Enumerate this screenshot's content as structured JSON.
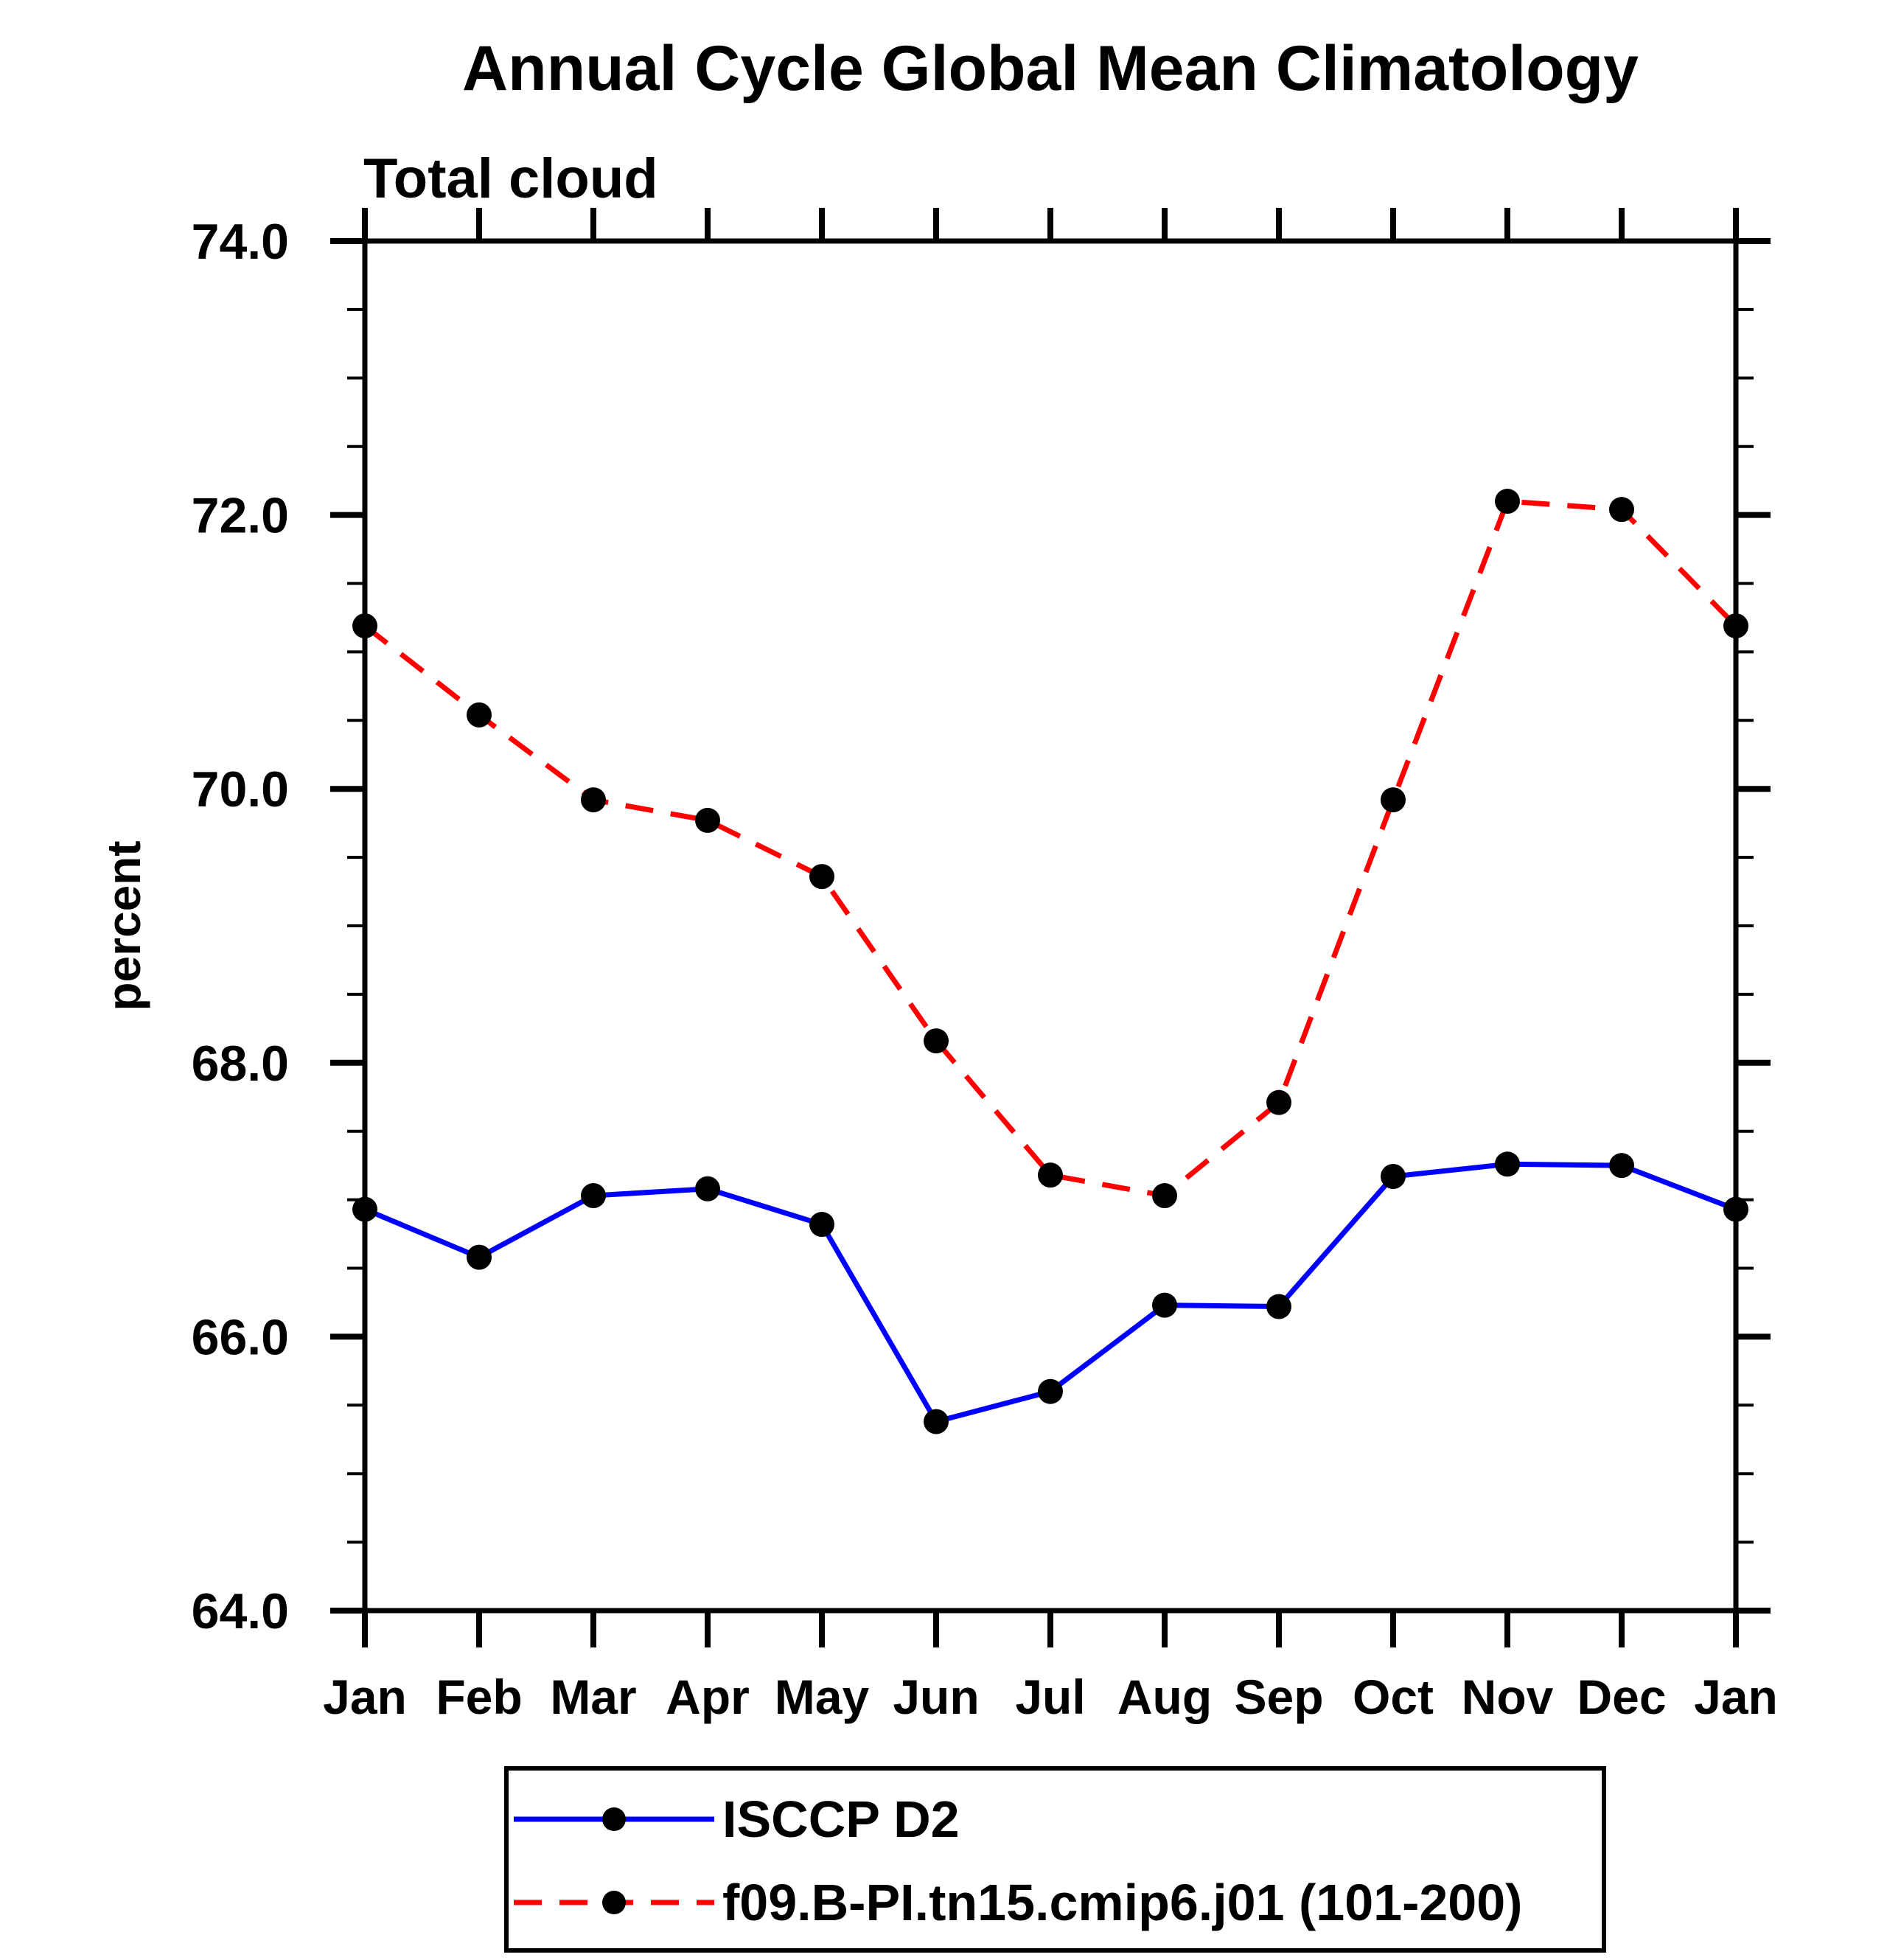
{
  "page": {
    "background_color": "#ffffff",
    "axis_color": "#000000"
  },
  "chart_data": {
    "type": "line",
    "title": "Annual Cycle Global Mean Climatology",
    "subtitle": "Total cloud",
    "ylabel": "percent",
    "ylim": [
      64.0,
      74.0
    ],
    "y_major_step": 2.0,
    "y_minor_step": 0.5,
    "y_major_tick_labels": [
      "74.0",
      "72.0",
      "70.0",
      "68.0",
      "66.0",
      "64.0"
    ],
    "categories": [
      "Jan",
      "Feb",
      "Mar",
      "Apr",
      "May",
      "Jun",
      "Jul",
      "Aug",
      "Sep",
      "Oct",
      "Nov",
      "Dec",
      "Jan"
    ],
    "grid": false,
    "legend_position": "bottom",
    "marker": "black-dot",
    "marker_color": "#000000",
    "series": [
      {
        "name": "ISCCP D2",
        "color": "#0000ff",
        "style": "solid",
        "values": [
          66.93,
          66.58,
          67.03,
          67.08,
          66.82,
          65.38,
          65.6,
          66.23,
          66.22,
          67.17,
          67.26,
          67.25,
          66.93
        ]
      },
      {
        "name": "f09.B-PI.tn15.cmip6.j01 (101-200)",
        "color": "#ff0000",
        "style": "dashed",
        "values": [
          71.19,
          70.54,
          69.92,
          69.77,
          69.36,
          68.16,
          67.18,
          67.03,
          67.71,
          69.92,
          72.1,
          72.04,
          71.19
        ]
      }
    ]
  }
}
